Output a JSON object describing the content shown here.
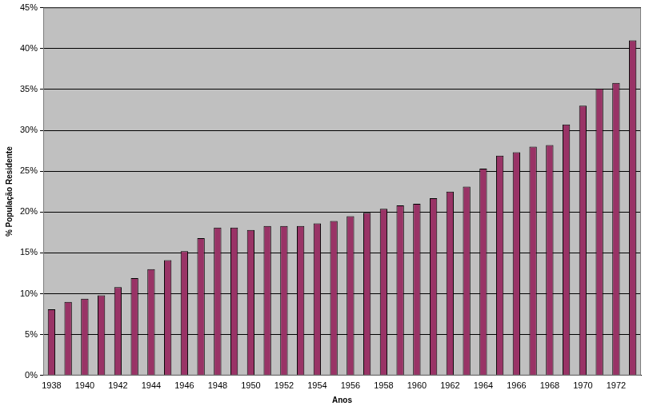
{
  "chart_data": {
    "type": "bar",
    "x_label": "Anos",
    "y_label": "% População Residente",
    "categories": [
      "1938",
      null,
      "1940",
      null,
      "1942",
      null,
      "1944",
      null,
      "1946",
      null,
      "1948",
      null,
      "1950",
      null,
      "1952",
      null,
      "1954",
      null,
      "1956",
      null,
      "1958",
      null,
      "1960",
      null,
      "1962",
      null,
      "1964",
      null,
      "1966",
      null,
      "1968",
      null,
      "1970",
      null,
      "1972",
      null
    ],
    "values": [
      8.1,
      9.0,
      9.4,
      9.8,
      10.8,
      11.9,
      13.0,
      14.1,
      15.2,
      16.8,
      18.1,
      18.1,
      17.8,
      18.3,
      18.3,
      18.3,
      18.6,
      18.9,
      19.5,
      19.9,
      20.4,
      20.8,
      21.0,
      21.7,
      22.5,
      23.1,
      25.3,
      26.9,
      27.3,
      28.0,
      28.2,
      30.7,
      33.0,
      35.1,
      35.8,
      41.0
    ],
    "color": "#993366",
    "ylim": [
      0,
      45
    ],
    "yticks": [
      {
        "value": 0,
        "label": "0%"
      },
      {
        "value": 5,
        "label": "5%"
      },
      {
        "value": 10,
        "label": "10%"
      },
      {
        "value": 15,
        "label": "15%"
      },
      {
        "value": 20,
        "label": "20%"
      },
      {
        "value": 25,
        "label": "25%"
      },
      {
        "value": 30,
        "label": "30%"
      },
      {
        "value": 35,
        "label": "35%"
      },
      {
        "value": 40,
        "label": "40%"
      },
      {
        "value": 45,
        "label": "45%"
      }
    ],
    "grid": true
  }
}
